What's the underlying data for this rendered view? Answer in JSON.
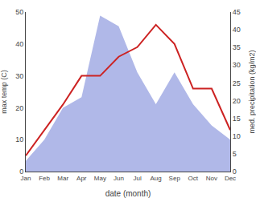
{
  "chart_data": {
    "type": "line",
    "xlabel": "date (month)",
    "ylabel": "max temp (C)",
    "y2label": "med. precipitation (kg/m2)",
    "categories": [
      "Jan",
      "Feb",
      "Mar",
      "Apr",
      "May",
      "Jun",
      "Jul",
      "Aug",
      "Sep",
      "Oct",
      "Nov",
      "Dec"
    ],
    "series": [
      {
        "type": "line",
        "color": "#cc2222",
        "values": [
          5,
          13,
          21,
          30,
          30,
          36,
          39,
          46,
          40,
          26,
          26,
          13
        ]
      },
      {
        "type": "area",
        "color": "#b0b8e8",
        "axis": "y2",
        "values": [
          3,
          9,
          18,
          21,
          44,
          41,
          28,
          19,
          28,
          19,
          13,
          9
        ]
      }
    ],
    "ylim": [
      0,
      50
    ],
    "yticks": [
      0,
      10,
      20,
      30,
      40,
      50
    ],
    "y2lim": [
      0,
      45
    ],
    "y2ticks": [
      0,
      5,
      10,
      15,
      20,
      25,
      30,
      35,
      40,
      45
    ],
    "grid": false
  }
}
